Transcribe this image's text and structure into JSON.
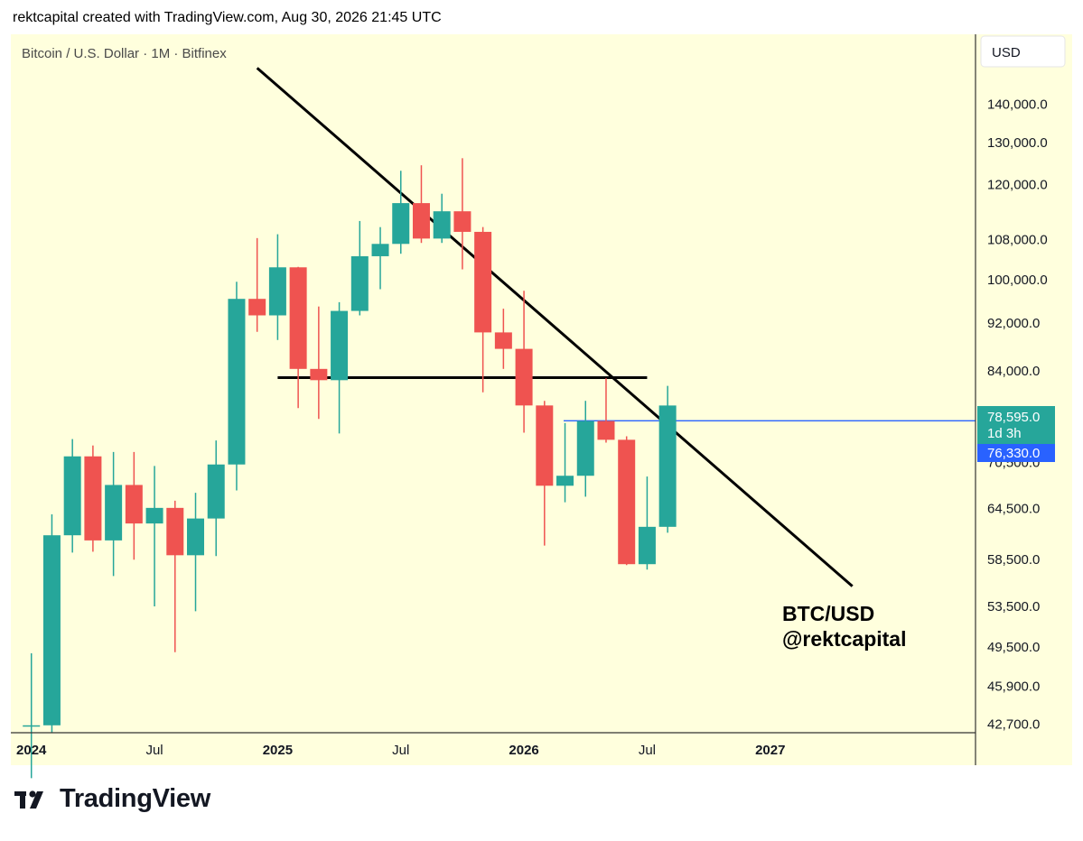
{
  "header": {
    "credit": "rektcapital created with TradingView.com, Aug 30, 2026 21:45 UTC"
  },
  "symbol_legend": "Bitcoin / U.S. Dollar · 1M · Bitfinex",
  "currency_button": "USD",
  "annotation": {
    "line1": "BTC/USD",
    "line2": "@rektcapital"
  },
  "brand": {
    "name": "TradingView",
    "logo": "tradingview-logo-icon"
  },
  "price_labels": {
    "last": "78,595.0",
    "countdown": "1d 3h",
    "marker": "76,330.0"
  },
  "colors": {
    "background": "#ffffdd",
    "up": "#26a69a",
    "down": "#ef5350",
    "marker": "#2962ff",
    "trendline": "#000000"
  },
  "chart_data": {
    "type": "candlestick",
    "title": "Bitcoin / U.S. Dollar · 1M · Bitfinex",
    "interval": "1M",
    "y_scale": "log",
    "ylim": [
      42000,
      160000
    ],
    "x_range": [
      "2023-12",
      "2027-11"
    ],
    "y_ticks": [
      "140,000.0",
      "130,000.0",
      "120,000.0",
      "108,000.0",
      "100,000.0",
      "92,000.0",
      "84,000.0",
      "70,500.0",
      "64,500.0",
      "58,500.0",
      "53,500.0",
      "49,500.0",
      "45,900.0",
      "42,700.0"
    ],
    "y_tick_values": [
      140000,
      130000,
      120000,
      108000,
      100000,
      92000,
      84000,
      70500,
      64500,
      58500,
      53500,
      49500,
      45900,
      42700
    ],
    "x_ticks": [
      {
        "label": "2024",
        "date": "2024-01",
        "bold": true
      },
      {
        "label": "Jul",
        "date": "2024-07",
        "bold": false
      },
      {
        "label": "2025",
        "date": "2025-01",
        "bold": true
      },
      {
        "label": "Jul",
        "date": "2025-07",
        "bold": false
      },
      {
        "label": "2026",
        "date": "2026-01",
        "bold": true
      },
      {
        "label": "Jul",
        "date": "2026-07",
        "bold": false
      },
      {
        "label": "2027",
        "date": "2027-01",
        "bold": true
      }
    ],
    "candles": [
      {
        "date": "2024-01",
        "open": 42500,
        "high": 48900,
        "low": 38500,
        "close": 42600
      },
      {
        "date": "2024-02",
        "open": 42600,
        "high": 63800,
        "low": 42000,
        "close": 61300
      },
      {
        "date": "2024-03",
        "open": 61300,
        "high": 73700,
        "low": 59300,
        "close": 71300
      },
      {
        "date": "2024-04",
        "open": 71300,
        "high": 72800,
        "low": 59400,
        "close": 60700
      },
      {
        "date": "2024-05",
        "open": 60700,
        "high": 71900,
        "low": 56700,
        "close": 67500
      },
      {
        "date": "2024-06",
        "open": 67500,
        "high": 71900,
        "low": 58500,
        "close": 62700
      },
      {
        "date": "2024-07",
        "open": 62700,
        "high": 70000,
        "low": 53500,
        "close": 64600
      },
      {
        "date": "2024-08",
        "open": 64600,
        "high": 65500,
        "low": 49000,
        "close": 59000
      },
      {
        "date": "2024-09",
        "open": 59000,
        "high": 66500,
        "low": 53000,
        "close": 63300
      },
      {
        "date": "2024-10",
        "open": 63300,
        "high": 73500,
        "low": 58900,
        "close": 70200
      },
      {
        "date": "2024-11",
        "open": 70200,
        "high": 99600,
        "low": 66800,
        "close": 96400
      },
      {
        "date": "2024-12",
        "open": 96400,
        "high": 108300,
        "low": 90500,
        "close": 93400
      },
      {
        "date": "2025-01",
        "open": 93400,
        "high": 109100,
        "low": 89100,
        "close": 102400
      },
      {
        "date": "2025-02",
        "open": 102400,
        "high": 102500,
        "low": 78200,
        "close": 84300
      },
      {
        "date": "2025-03",
        "open": 84300,
        "high": 95000,
        "low": 76600,
        "close": 82500
      },
      {
        "date": "2025-04",
        "open": 82500,
        "high": 95800,
        "low": 74500,
        "close": 94200
      },
      {
        "date": "2025-05",
        "open": 94200,
        "high": 111900,
        "low": 93400,
        "close": 104600
      },
      {
        "date": "2025-06",
        "open": 104600,
        "high": 110600,
        "low": 98200,
        "close": 107100
      },
      {
        "date": "2025-07",
        "open": 107100,
        "high": 123200,
        "low": 105100,
        "close": 115800
      },
      {
        "date": "2025-08",
        "open": 115800,
        "high": 124500,
        "low": 107300,
        "close": 108200
      },
      {
        "date": "2025-09",
        "open": 108200,
        "high": 117900,
        "low": 107300,
        "close": 114000
      },
      {
        "date": "2025-10",
        "open": 114000,
        "high": 126200,
        "low": 102000,
        "close": 109600
      },
      {
        "date": "2025-11",
        "open": 109600,
        "high": 110600,
        "low": 80600,
        "close": 90400
      },
      {
        "date": "2025-12",
        "open": 90400,
        "high": 94600,
        "low": 84300,
        "close": 87600
      },
      {
        "date": "2026-01",
        "open": 87600,
        "high": 97900,
        "low": 74600,
        "close": 78600
      },
      {
        "date": "2026-02",
        "open": 78600,
        "high": 79300,
        "low": 60100,
        "close": 67400
      },
      {
        "date": "2026-03",
        "open": 67400,
        "high": 76000,
        "low": 65300,
        "close": 68700
      },
      {
        "date": "2026-04",
        "open": 68700,
        "high": 79300,
        "low": 66000,
        "close": 76300
      },
      {
        "date": "2026-05",
        "open": 76300,
        "high": 82800,
        "low": 73200,
        "close": 73600
      },
      {
        "date": "2026-06",
        "open": 73600,
        "high": 74100,
        "low": 57900,
        "close": 58000
      },
      {
        "date": "2026-07",
        "open": 58000,
        "high": 68600,
        "low": 57400,
        "close": 62300
      },
      {
        "date": "2026-08",
        "open": 62300,
        "high": 81600,
        "low": 61600,
        "close": 78595
      }
    ],
    "lines": [
      {
        "name": "downtrend",
        "from": {
          "date": "2024-12",
          "price": 150000
        },
        "to": {
          "date": "2027-05",
          "price": 55600
        },
        "color": "#000000"
      },
      {
        "name": "support",
        "from": {
          "date": "2025-01",
          "price": 82900
        },
        "to": {
          "date": "2026-07",
          "price": 82900
        },
        "color": "#000000"
      },
      {
        "name": "marker",
        "from": {
          "date": "2025-12",
          "price": 76330
        },
        "to": {
          "date": "2027-12",
          "price": 76330
        },
        "color": "#2962ff"
      }
    ]
  }
}
